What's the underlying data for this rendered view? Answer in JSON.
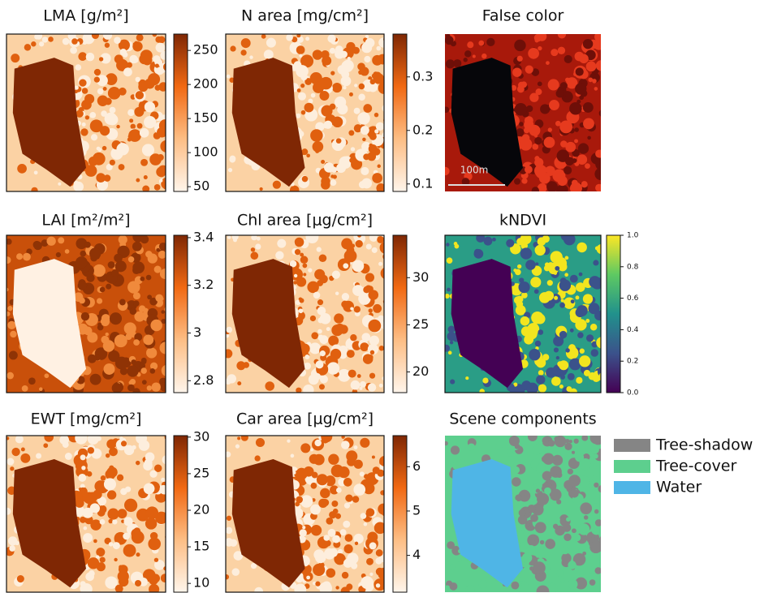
{
  "chart_data": [
    {
      "type": "image",
      "title": "LMA [g/m²]",
      "colormap": [
        "#fff5eb",
        "#fdbe85",
        "#f16913",
        "#7f2704"
      ],
      "ylim": [
        43,
        274
      ],
      "yticks": [
        50,
        100,
        150,
        200,
        250
      ]
    },
    {
      "type": "image",
      "title": "N area [mg/cm²]",
      "colormap": [
        "#fff5eb",
        "#fdbe85",
        "#f16913",
        "#7f2704"
      ],
      "ylim": [
        0.086,
        0.38
      ],
      "yticks": [
        0.1,
        0.2,
        0.3
      ]
    },
    {
      "type": "image",
      "title": "False color",
      "scale_bar": "100m"
    },
    {
      "type": "image",
      "title": "LAI [m²/m²]",
      "colormap": [
        "#fff5eb",
        "#fdbe85",
        "#f16913",
        "#7f2704"
      ],
      "ylim": [
        2.75,
        3.41
      ],
      "yticks": [
        2.8,
        3.0,
        3.2,
        3.4
      ]
    },
    {
      "type": "image",
      "title": "Chl area [μg/cm²]",
      "colormap": [
        "#fff5eb",
        "#fdbe85",
        "#f16913",
        "#7f2704"
      ],
      "ylim": [
        17.8,
        34.5
      ],
      "yticks": [
        20,
        25,
        30
      ]
    },
    {
      "type": "image",
      "title": "kNDVI",
      "colormap": [
        "#440154",
        "#3b528b",
        "#21918c",
        "#5ec962",
        "#fde725"
      ],
      "ylim": [
        0,
        1
      ],
      "yticks": [
        {
          "value": 0,
          "label": "0.0"
        },
        0.2,
        0.4,
        0.6,
        0.8,
        {
          "value": 1,
          "label": "1.0"
        }
      ]
    },
    {
      "type": "image",
      "title": "EWT [mg/cm²]",
      "colormap": [
        "#fff5eb",
        "#fdbe85",
        "#f16913",
        "#7f2704"
      ],
      "ylim": [
        8.8,
        30.2
      ],
      "yticks": [
        10,
        15,
        20,
        25,
        30
      ]
    },
    {
      "type": "image",
      "title": "Car area [μg/cm²]",
      "colormap": [
        "#fff5eb",
        "#fdbe85",
        "#f16913",
        "#7f2704"
      ],
      "ylim": [
        3.17,
        6.7
      ],
      "yticks": [
        4,
        5,
        6
      ]
    },
    {
      "type": "image",
      "title": "Scene components",
      "series": [
        {
          "name": "Tree-shadow",
          "color": "#858585"
        },
        {
          "name": "Tree-cover",
          "color": "#5dcf8e"
        },
        {
          "name": "Water",
          "color": "#4fb5e6"
        }
      ]
    }
  ]
}
